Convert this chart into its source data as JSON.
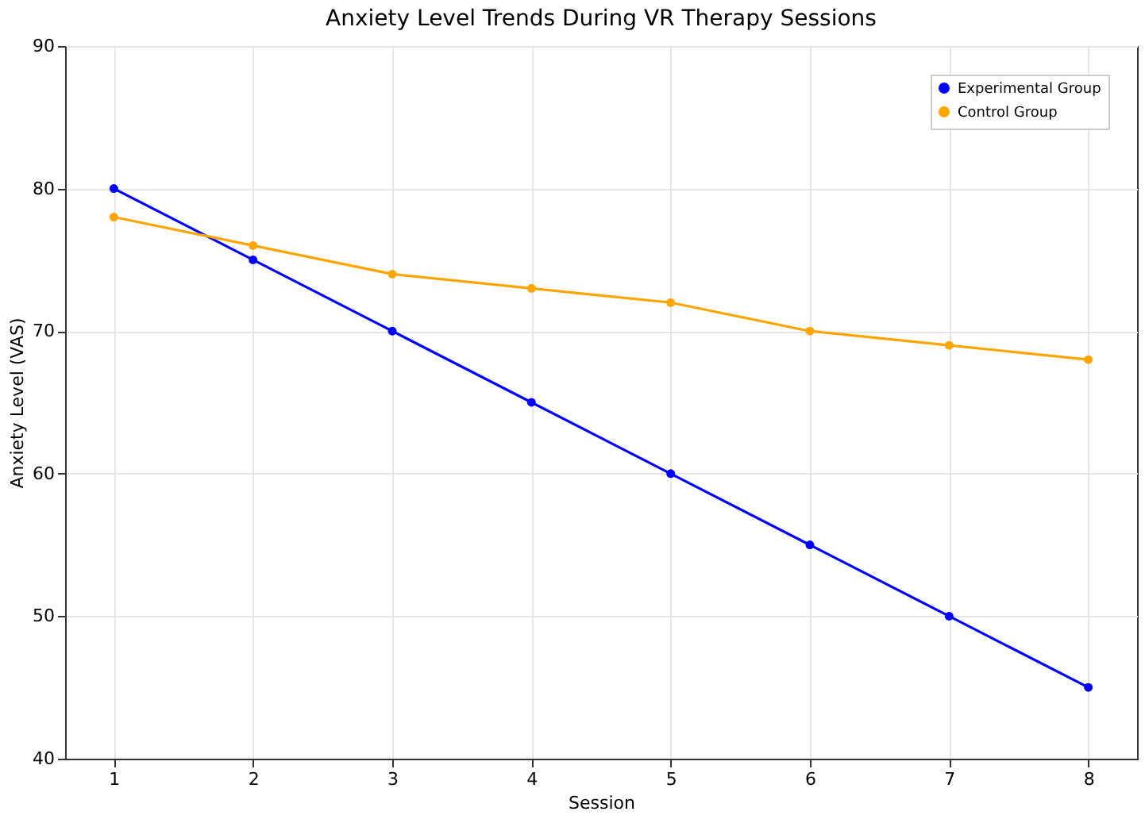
{
  "chart_data": {
    "type": "line",
    "title": "Anxiety Level Trends During VR Therapy Sessions",
    "xlabel": "Session",
    "ylabel": "Anxiety Level (VAS)",
    "x": [
      1,
      2,
      3,
      4,
      5,
      6,
      7,
      8
    ],
    "series": [
      {
        "name": "Experimental Group",
        "color": "#0000ff",
        "values": [
          80,
          75,
          70,
          65,
          60,
          55,
          50,
          45
        ]
      },
      {
        "name": "Control Group",
        "color": "#ffa500",
        "values": [
          78,
          76,
          74,
          73,
          72,
          70,
          69,
          68
        ]
      }
    ],
    "xlim": [
      0.65,
      8.35
    ],
    "xticks": [
      1,
      2,
      3,
      4,
      5,
      6,
      7,
      8
    ],
    "ylim": [
      40,
      90
    ],
    "yticks": [
      40,
      50,
      60,
      70,
      80,
      90
    ],
    "grid": true,
    "legend": "top right",
    "marker": "circle",
    "line_style": "solid"
  }
}
